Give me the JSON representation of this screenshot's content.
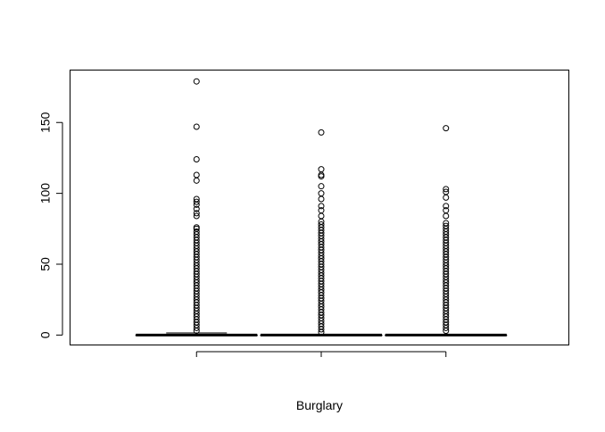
{
  "chart_data": {
    "type": "boxplot",
    "title": "",
    "xlabel": "Burglary",
    "ylabel": "",
    "ylim": [
      -7,
      187
    ],
    "yticks": [
      0,
      50,
      100,
      150
    ],
    "x_tick_labels": [
      "",
      "",
      ""
    ],
    "grid": false,
    "series": [
      {
        "median": 0,
        "q1": 0,
        "q3": 0,
        "whisker_low": 0,
        "whisker_high": 1.5,
        "outliers": [
          179,
          147,
          124,
          113,
          109,
          96,
          94,
          92,
          89,
          86,
          84,
          76,
          75,
          73,
          71,
          69,
          67,
          65,
          63,
          61,
          59,
          57,
          55,
          53,
          51,
          49,
          47,
          45,
          43,
          41,
          39,
          37,
          35,
          33,
          31,
          29,
          27,
          25,
          23,
          21,
          19,
          17,
          15,
          13,
          11,
          9,
          7,
          5,
          3
        ]
      },
      {
        "median": 0,
        "q1": 0,
        "q3": 0,
        "whisker_low": 0,
        "whisker_high": 0,
        "outliers": [
          143,
          117,
          113,
          112,
          105,
          100,
          96,
          91,
          88,
          84,
          80,
          78,
          76,
          74,
          72,
          70,
          68,
          66,
          64,
          62,
          60,
          58,
          56,
          54,
          52,
          50,
          48,
          46,
          44,
          42,
          40,
          38,
          36,
          34,
          32,
          30,
          28,
          26,
          24,
          22,
          20,
          18,
          16,
          14,
          12,
          10,
          8,
          6,
          4,
          2
        ]
      },
      {
        "median": 0,
        "q1": 0,
        "q3": 0,
        "whisker_low": 0,
        "whisker_high": 0,
        "outliers": [
          146,
          103,
          101,
          97,
          91,
          88,
          84,
          79,
          77,
          75,
          73,
          71,
          69,
          67,
          65,
          63,
          61,
          59,
          57,
          55,
          53,
          51,
          49,
          47,
          45,
          43,
          41,
          39,
          37,
          35,
          33,
          31,
          29,
          27,
          25,
          23,
          21,
          19,
          17,
          15,
          13,
          11,
          9,
          7,
          5,
          3
        ]
      }
    ]
  }
}
